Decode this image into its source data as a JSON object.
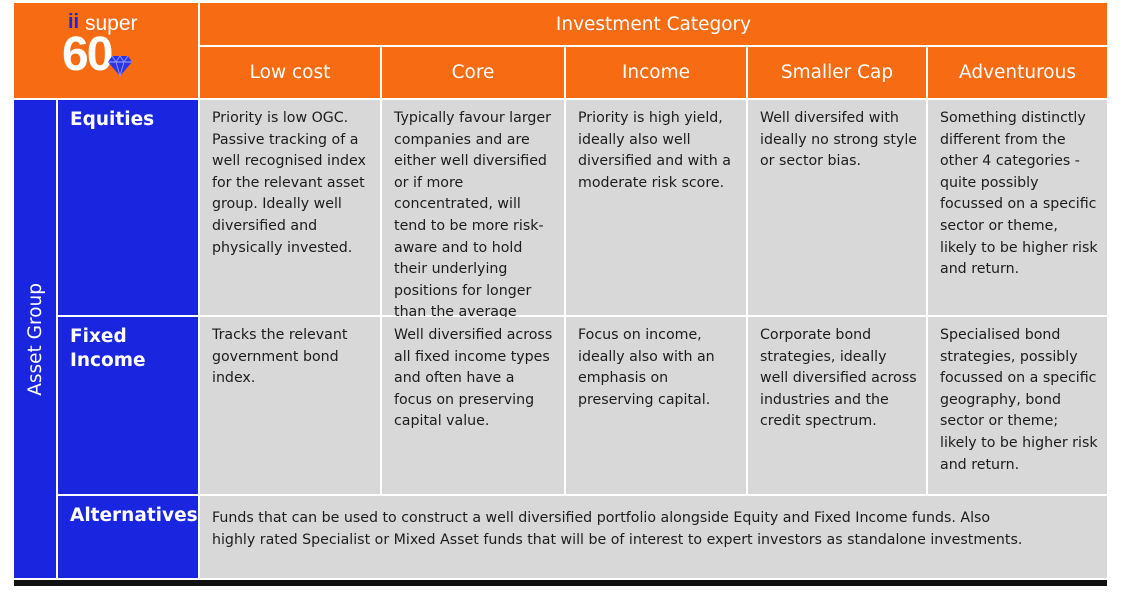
{
  "logo": {
    "prefix": "ii",
    "word": "super",
    "number": "60",
    "gem_color": "#2b35e8"
  },
  "table": {
    "title": "Investment Category",
    "side_title": "Asset Group",
    "columns": [
      "Low cost",
      "Core",
      "Income",
      "Smaller Cap",
      "Adventurous"
    ],
    "rows": [
      {
        "label": "Equities",
        "cells": [
          "Priority is low OGC. Passive tracking of a well recognised index for the relevant asset group. Ideally well diversified and physically invested.",
          "Typically favour larger companies and are either well diversified or if more concentrated, will tend to be more risk-aware and to hold their underlying positions for longer than the average manager.",
          "Priority is high yield, ideally also well diversified and with a moderate risk score.",
          "Well diversifed with ideally no strong style or sector bias.",
          "Something distinctly different from the other 4 categories - quite possibly focussed on a specific sector or theme, likely to be higher risk and return."
        ]
      },
      {
        "label": "Fixed Income",
        "cells": [
          "Tracks the relevant government bond index.",
          "Well diversified across all fixed income types and often have a focus on preserving capital value.",
          "Focus on income, ideally also with an emphasis on preserving capital.",
          "Corporate bond strategies, ideally well diversified across industries and the credit spectrum.",
          "Specialised bond strategies, possibly focussed on a specific geography, bond sector or theme; likely to be higher risk and return."
        ]
      },
      {
        "label": "Alternatives",
        "merged_text": "Funds that can be used to construct a well diversified portfolio alongside Equity and Fixed Income funds. Also highly rated Specialist or Mixed Asset funds that will be of interest to expert investors as standalone investments."
      }
    ]
  },
  "colors": {
    "orange": "#f76b12",
    "blue": "#1a25e0",
    "grey": "#d9d8d8",
    "text_dark": "#1c1c1c"
  }
}
